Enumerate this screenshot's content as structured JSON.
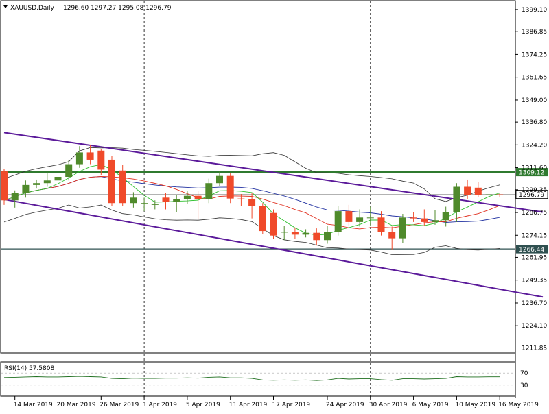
{
  "header": {
    "symbol": "XAUUSD,Daily",
    "ohlc": "1296.60 1297.27 1295.08 1296.79"
  },
  "rsi_panel": {
    "label": "RSI(14) 57.5808",
    "levels": [
      "70",
      "30"
    ],
    "level_values": [
      70,
      30
    ]
  },
  "colors": {
    "bull": "#4f8a2b",
    "bear": "#f04a2a",
    "channel": "#5b1a9a",
    "sr_line": "#2f7a2f",
    "support_line": "#2f5050",
    "bollinger": "#333333",
    "ma_red": "#e03020",
    "ma_blue": "#2030a0",
    "ma_green": "#2ec02e",
    "rsi_line": "#1f6f1f"
  },
  "chart_data": {
    "type": "candlestick",
    "ylim": [
      1209.0,
      1404.0
    ],
    "y_ticks": [
      "1399.10",
      "1386.85",
      "1374.25",
      "1361.65",
      "1349.00",
      "1336.80",
      "1324.20",
      "1311.60",
      "1299.35",
      "1286.75",
      "1274.15",
      "1261.95",
      "1249.35",
      "1236.70",
      "1224.10",
      "1211.85"
    ],
    "y_tick_values": [
      1399.1,
      1386.85,
      1374.25,
      1361.65,
      1349.0,
      1336.8,
      1324.2,
      1311.6,
      1299.35,
      1286.75,
      1274.15,
      1261.95,
      1249.35,
      1236.7,
      1224.1,
      1211.85
    ],
    "x_ticks": [
      "14 Mar 2019",
      "20 Mar 2019",
      "26 Mar 2019",
      "1 Apr 2019",
      "5 Apr 2019",
      "11 Apr 2019",
      "17 Apr 2019",
      "24 Apr 2019",
      "30 Apr 2019",
      "6 May 2019",
      "10 May 2019",
      "16 May 2019"
    ],
    "x_tick_dates": [
      "2019-03-14",
      "2019-03-20",
      "2019-03-26",
      "2019-04-01",
      "2019-04-05",
      "2019-04-11",
      "2019-04-17",
      "2019-04-24",
      "2019-04-30",
      "2019-05-06",
      "2019-05-10",
      "2019-05-16"
    ],
    "dates": [
      "2019-03-13",
      "2019-03-14",
      "2019-03-15",
      "2019-03-18",
      "2019-03-19",
      "2019-03-20",
      "2019-03-21",
      "2019-03-22",
      "2019-03-25",
      "2019-03-26",
      "2019-03-27",
      "2019-03-28",
      "2019-03-29",
      "2019-04-01",
      "2019-04-02",
      "2019-04-03",
      "2019-04-04",
      "2019-04-05",
      "2019-04-08",
      "2019-04-09",
      "2019-04-10",
      "2019-04-11",
      "2019-04-12",
      "2019-04-15",
      "2019-04-16",
      "2019-04-17",
      "2019-04-18",
      "2019-04-19",
      "2019-04-22",
      "2019-04-23",
      "2019-04-24",
      "2019-04-25",
      "2019-04-26",
      "2019-04-29",
      "2019-04-30",
      "2019-05-01",
      "2019-05-02",
      "2019-05-03",
      "2019-05-06",
      "2019-05-07",
      "2019-05-08",
      "2019-05-09",
      "2019-05-10",
      "2019-05-13",
      "2019-05-14",
      "2019-05-15",
      "2019-05-16"
    ],
    "open": [
      1309.5,
      1293.5,
      1297.5,
      1302.0,
      1303.0,
      1304.5,
      1306.5,
      1313.5,
      1320.0,
      1321.0,
      1316.0,
      1310.0,
      1292.0,
      1292.0,
      1291.0,
      1295.0,
      1292.5,
      1294.0,
      1296.0,
      1294.0,
      1303.0,
      1307.0,
      1294.5,
      1294.0,
      1290.5,
      1286.5,
      1276.0,
      1276.0,
      1274.5,
      1275.5,
      1271.5,
      1276.0,
      1287.5,
      1281.5,
      1284.0,
      1284.0,
      1276.0,
      1272.5,
      1284.0,
      1283.5,
      1281.5,
      1282.5,
      1287.0,
      1301.0,
      1300.5,
      1296.6,
      1296.8
    ],
    "close": [
      1293.5,
      1297.5,
      1302.0,
      1303.0,
      1304.5,
      1306.5,
      1313.5,
      1320.0,
      1316.0,
      1310.5,
      1292.0,
      1292.0,
      1295.0,
      1292.0,
      1291.5,
      1292.5,
      1294.0,
      1296.0,
      1294.0,
      1303.0,
      1307.0,
      1294.5,
      1294.0,
      1290.5,
      1276.5,
      1274.0,
      1276.0,
      1274.5,
      1275.5,
      1271.5,
      1276.0,
      1287.5,
      1281.5,
      1284.0,
      1284.0,
      1276.0,
      1272.5,
      1284.0,
      1283.5,
      1281.5,
      1282.5,
      1287.0,
      1301.0,
      1296.6,
      1296.6,
      1296.79,
      1296.79
    ],
    "high": [
      1311.0,
      1299.0,
      1304.5,
      1305.0,
      1309.0,
      1309.5,
      1316.0,
      1323.5,
      1324.0,
      1322.0,
      1318.0,
      1313.0,
      1298.0,
      1295.0,
      1293.5,
      1297.5,
      1296.5,
      1298.5,
      1298.5,
      1305.5,
      1309.5,
      1308.5,
      1297.0,
      1297.5,
      1292.0,
      1288.5,
      1279.5,
      1278.5,
      1277.5,
      1278.0,
      1279.5,
      1290.5,
      1291.0,
      1288.5,
      1290.0,
      1287.5,
      1279.0,
      1286.0,
      1287.0,
      1288.5,
      1288.0,
      1290.0,
      1303.0,
      1305.0,
      1303.5,
      1297.27,
      1297.3
    ],
    "low": [
      1291.0,
      1289.5,
      1295.0,
      1300.0,
      1301.0,
      1303.0,
      1304.5,
      1311.5,
      1313.5,
      1307.5,
      1290.5,
      1290.5,
      1289.5,
      1287.5,
      1288.5,
      1288.5,
      1287.0,
      1291.5,
      1283.0,
      1292.0,
      1301.5,
      1292.0,
      1290.5,
      1283.5,
      1275.0,
      1272.0,
      1271.5,
      1272.0,
      1273.0,
      1268.5,
      1269.5,
      1274.0,
      1279.5,
      1279.0,
      1279.5,
      1274.0,
      1266.0,
      1270.0,
      1281.5,
      1279.5,
      1280.0,
      1279.0,
      1281.5,
      1294.0,
      1295.5,
      1295.08,
      1295.5
    ],
    "horizontal_levels": [
      {
        "value": 1309.12,
        "label": "1309.12"
      },
      {
        "value": 1266.44,
        "label": "1266.44"
      }
    ],
    "current_price": {
      "value": 1296.79,
      "label": "1296.79"
    },
    "channel_upper": {
      "start": [
        "2019-03-13",
        1331.0
      ],
      "end": [
        "2019-05-22",
        1287.0
      ]
    },
    "channel_lower": {
      "start": [
        "2019-03-13",
        1294.0
      ],
      "end": [
        "2019-05-22",
        1240.0
      ]
    },
    "vertical_markers": [
      "2019-04-01",
      "2019-04-30"
    ],
    "rsi_values": [
      55,
      56,
      57,
      58,
      57,
      57,
      58,
      59,
      58,
      57,
      52,
      51,
      53,
      52,
      52,
      53,
      53,
      54,
      53,
      56,
      57,
      54,
      54,
      52,
      47,
      46,
      47,
      46,
      47,
      45,
      47,
      52,
      50,
      51,
      51,
      48,
      46,
      51,
      51,
      50,
      51,
      52,
      58,
      57,
      57,
      57.58,
      57.58
    ]
  }
}
